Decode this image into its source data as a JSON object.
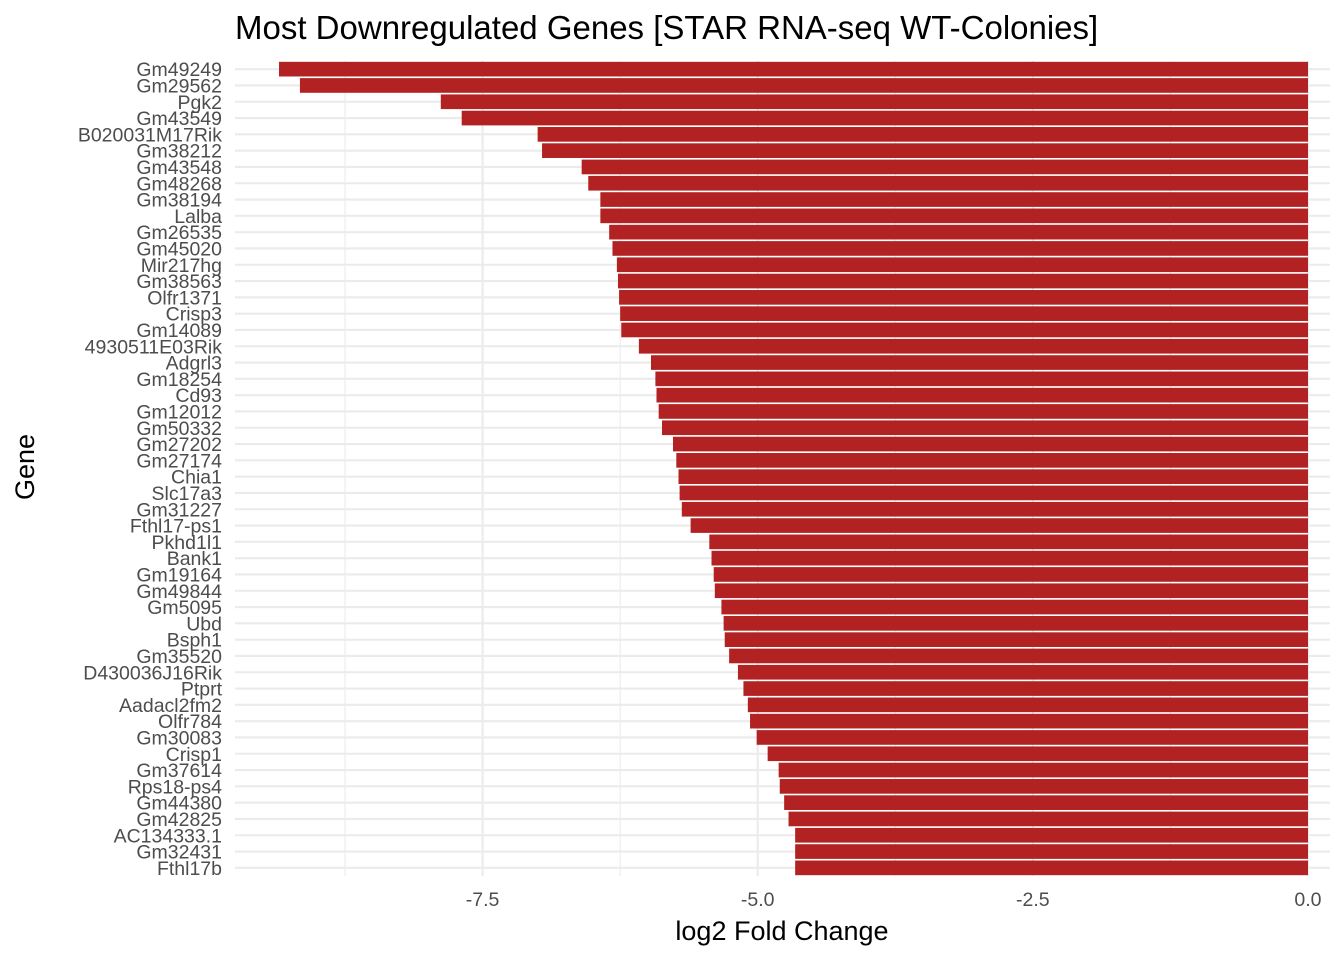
{
  "chart_data": {
    "type": "bar",
    "orientation": "horizontal",
    "title": "Most Downregulated Genes [STAR RNA-seq WT-Colonies]",
    "xlabel": "log2 Fold Change",
    "ylabel": "Gene",
    "xlim": [
      -9.75,
      0.2
    ],
    "x_ticks": [
      -7.5,
      -5.0,
      -2.5,
      0.0
    ],
    "x_tick_labels": [
      "-7.5",
      "-5.0",
      "-2.5",
      "0.0"
    ],
    "grid": true,
    "bar_color": "#b22222",
    "categories": [
      "Gm49249",
      "Gm29562",
      "Pgk2",
      "Gm43549",
      "B020031M17Rik",
      "Gm38212",
      "Gm43548",
      "Gm48268",
      "Gm38194",
      "Lalba",
      "Gm26535",
      "Gm45020",
      "Mir217hg",
      "Gm38563",
      "Olfr1371",
      "Crisp3",
      "Gm14089",
      "4930511E03Rik",
      "Adgrl3",
      "Gm18254",
      "Cd93",
      "Gm12012",
      "Gm50332",
      "Gm27202",
      "Gm27174",
      "Chia1",
      "Slc17a3",
      "Gm31227",
      "Fthl17-ps1",
      "Pkhd1l1",
      "Bank1",
      "Gm19164",
      "Gm49844",
      "Gm5095",
      "Ubd",
      "Bsph1",
      "Gm35520",
      "D430036J16Rik",
      "Ptprt",
      "Aadacl2fm2",
      "Olfr784",
      "Gm30083",
      "Crisp1",
      "Gm37614",
      "Rps18-ps4",
      "Gm44380",
      "Gm42825",
      "AC134333.1",
      "Gm32431",
      "Fthl17b"
    ],
    "values": [
      -9.35,
      -9.16,
      -7.88,
      -7.69,
      -7.0,
      -6.96,
      -6.6,
      -6.54,
      -6.43,
      -6.43,
      -6.35,
      -6.32,
      -6.28,
      -6.27,
      -6.26,
      -6.25,
      -6.24,
      -6.08,
      -5.97,
      -5.93,
      -5.92,
      -5.9,
      -5.87,
      -5.77,
      -5.74,
      -5.72,
      -5.71,
      -5.69,
      -5.61,
      -5.44,
      -5.42,
      -5.4,
      -5.39,
      -5.33,
      -5.31,
      -5.3,
      -5.26,
      -5.18,
      -5.13,
      -5.09,
      -5.07,
      -5.01,
      -4.91,
      -4.81,
      -4.8,
      -4.76,
      -4.72,
      -4.66,
      -4.66,
      -4.66
    ]
  }
}
